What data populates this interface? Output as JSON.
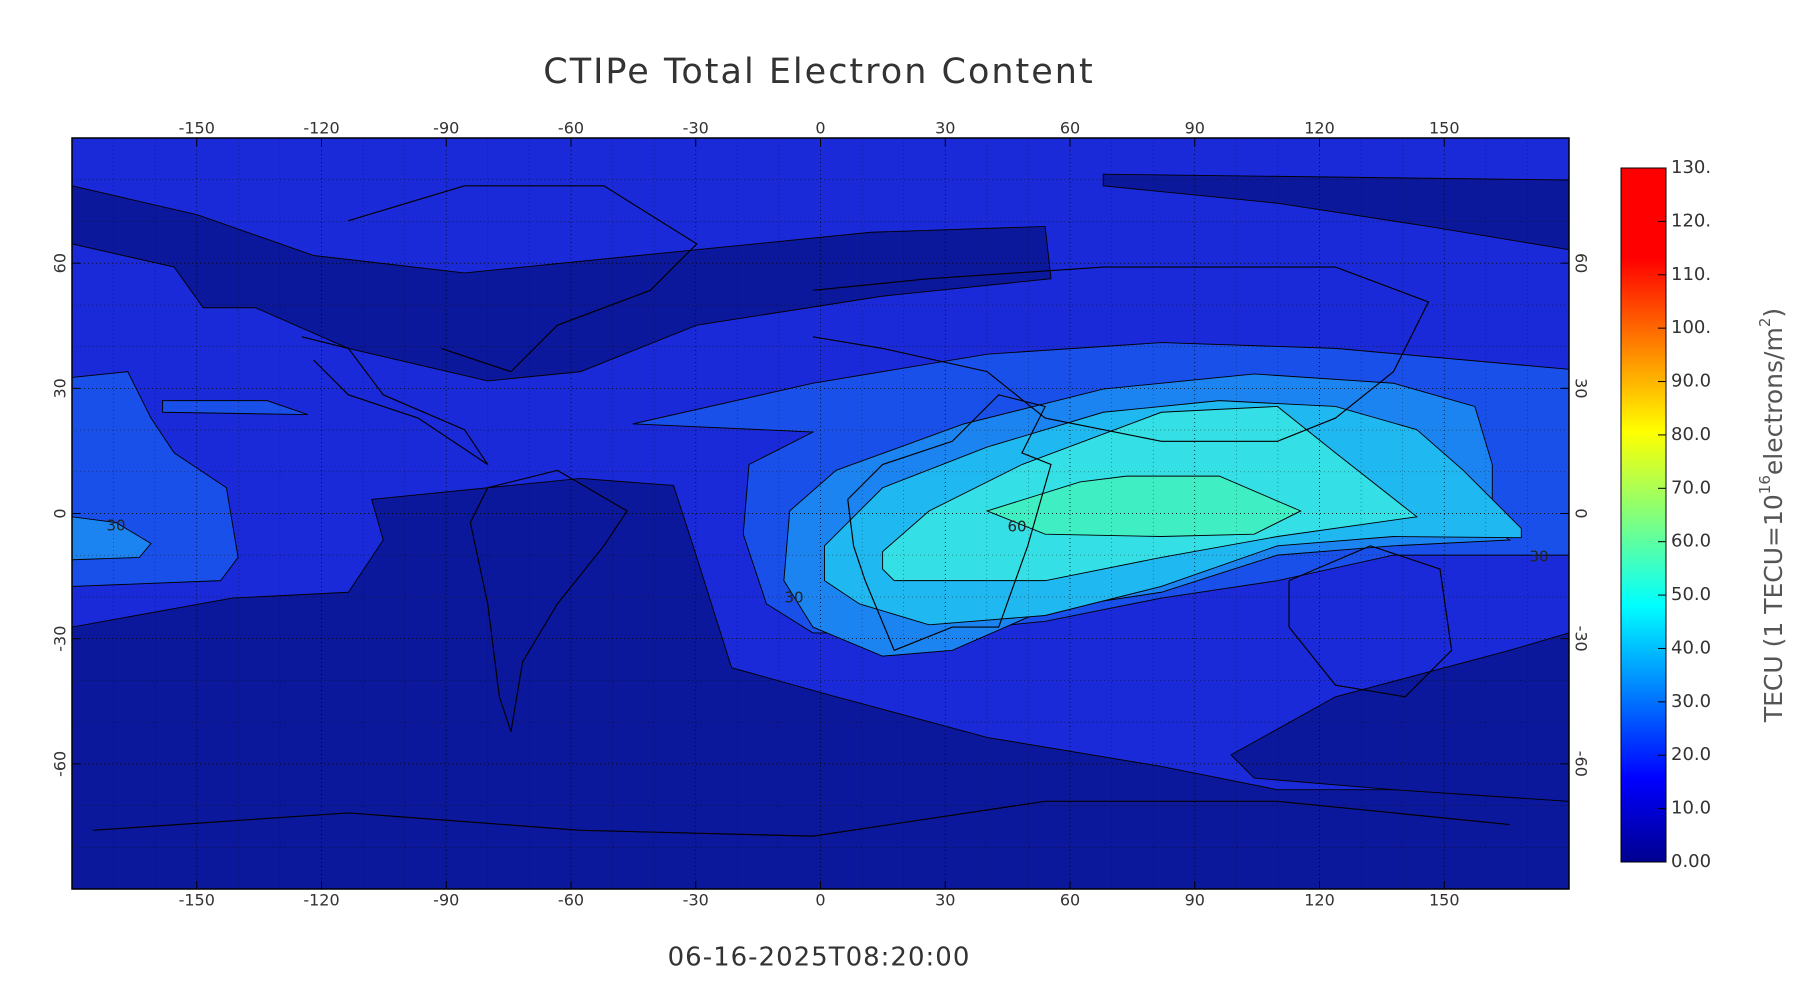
{
  "chart_data": {
    "type": "map",
    "title": "CTIPe Total Electron Content",
    "timestamp": "06-16-2025T08:20:00",
    "xlim": [
      -180,
      180
    ],
    "ylim": [
      -90,
      90
    ],
    "xticks": [
      -150,
      -120,
      -90,
      -60,
      -30,
      0,
      30,
      60,
      90,
      120,
      150
    ],
    "yticks": [
      -60,
      -30,
      0,
      30,
      60
    ],
    "grid": true,
    "colorbar": {
      "label_parts": [
        "TECU (1 TECU=10",
        "16",
        "electrons/m",
        "2",
        ")"
      ],
      "lim": [
        0,
        130
      ],
      "ticks": [
        {
          "value": 0,
          "label": "0.00"
        },
        {
          "value": 10,
          "label": "10.0"
        },
        {
          "value": 20,
          "label": "20.0"
        },
        {
          "value": 30,
          "label": "30.0"
        },
        {
          "value": 40,
          "label": "40.0"
        },
        {
          "value": 50,
          "label": "50.0"
        },
        {
          "value": 60,
          "label": "60.0"
        },
        {
          "value": 70,
          "label": "70.0"
        },
        {
          "value": 80,
          "label": "80.0"
        },
        {
          "value": 90,
          "label": "90.0"
        },
        {
          "value": 100,
          "label": "100."
        },
        {
          "value": 110,
          "label": "110."
        },
        {
          "value": 120,
          "label": "120."
        },
        {
          "value": 130,
          "label": "130."
        }
      ]
    },
    "contour_labels": [
      "30",
      "60",
      "30",
      "30"
    ]
  }
}
